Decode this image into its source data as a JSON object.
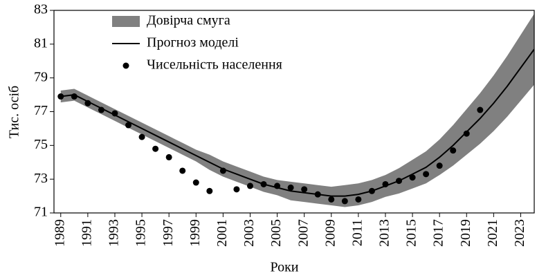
{
  "chart_data": {
    "type": "line",
    "xlabel": "Роки",
    "ylabel": "Тис. осіб",
    "xlim": [
      1988.5,
      2024
    ],
    "ylim": [
      71,
      83
    ],
    "xticks": [
      1989,
      1991,
      1993,
      1995,
      1997,
      1999,
      2001,
      2003,
      2005,
      2007,
      2009,
      2011,
      2013,
      2015,
      2017,
      2019,
      2021,
      2023
    ],
    "yticks": [
      71,
      73,
      75,
      77,
      79,
      81,
      83
    ],
    "legend": "upper-left",
    "series": [
      {
        "name": "Довірча смуга",
        "kind": "band",
        "color": "#808080",
        "x": [
          1989,
          1990,
          1991,
          1992,
          1993,
          1994,
          1995,
          1996,
          1997,
          1998,
          1999,
          2000,
          2001,
          2002,
          2003,
          2004,
          2005,
          2006,
          2007,
          2008,
          2009,
          2010,
          2011,
          2012,
          2013,
          2014,
          2015,
          2016,
          2017,
          2018,
          2019,
          2020,
          2021,
          2022,
          2023,
          2024
        ],
        "upper": [
          78.25,
          78.35,
          77.95,
          77.55,
          77.15,
          76.75,
          76.35,
          75.95,
          75.55,
          75.15,
          74.75,
          74.45,
          74.05,
          73.75,
          73.45,
          73.15,
          72.95,
          72.85,
          72.75,
          72.65,
          72.55,
          72.65,
          72.75,
          72.95,
          73.25,
          73.65,
          74.15,
          74.65,
          75.35,
          76.2,
          77.15,
          78.1,
          79.15,
          80.3,
          81.55,
          82.8
        ],
        "lower": [
          77.55,
          77.65,
          77.25,
          76.85,
          76.45,
          76.05,
          75.65,
          75.25,
          74.85,
          74.45,
          74.05,
          73.55,
          73.15,
          72.85,
          72.55,
          72.25,
          72.05,
          71.75,
          71.65,
          71.55,
          71.45,
          71.35,
          71.45,
          71.65,
          71.95,
          72.15,
          72.45,
          72.75,
          73.25,
          73.8,
          74.45,
          75.1,
          75.85,
          76.7,
          77.65,
          78.6
        ]
      },
      {
        "name": "Прогноз моделі",
        "kind": "line",
        "color": "#000000",
        "x": [
          1989,
          1990,
          1991,
          1992,
          1993,
          1994,
          1995,
          1996,
          1997,
          1998,
          1999,
          2000,
          2001,
          2002,
          2003,
          2004,
          2005,
          2006,
          2007,
          2008,
          2009,
          2010,
          2011,
          2012,
          2013,
          2014,
          2015,
          2016,
          2017,
          2018,
          2019,
          2020,
          2021,
          2022,
          2023,
          2024
        ],
        "values": [
          77.9,
          78.0,
          77.6,
          77.2,
          76.8,
          76.4,
          76.0,
          75.6,
          75.2,
          74.8,
          74.4,
          74.0,
          73.6,
          73.3,
          73.0,
          72.7,
          72.5,
          72.3,
          72.2,
          72.1,
          72.0,
          72.0,
          72.1,
          72.3,
          72.6,
          72.9,
          73.3,
          73.7,
          74.3,
          75.0,
          75.8,
          76.6,
          77.5,
          78.5,
          79.6,
          80.7
        ]
      },
      {
        "name": "Чисельність населення",
        "kind": "points",
        "color": "#000000",
        "x": [
          1989,
          1990,
          1991,
          1992,
          1993,
          1994,
          1995,
          1996,
          1997,
          1998,
          1999,
          2000,
          2001,
          2002,
          2003,
          2004,
          2005,
          2006,
          2007,
          2008,
          2009,
          2010,
          2011,
          2012,
          2013,
          2014,
          2015,
          2016,
          2017,
          2018,
          2019,
          2020
        ],
        "values": [
          77.9,
          77.9,
          77.5,
          77.1,
          76.9,
          76.2,
          75.5,
          74.8,
          74.3,
          73.5,
          72.8,
          72.3,
          73.5,
          72.4,
          72.6,
          72.7,
          72.6,
          72.5,
          72.4,
          72.1,
          71.8,
          71.7,
          71.8,
          72.3,
          72.7,
          72.9,
          73.1,
          73.3,
          73.8,
          74.7,
          75.7,
          77.1
        ]
      }
    ]
  }
}
